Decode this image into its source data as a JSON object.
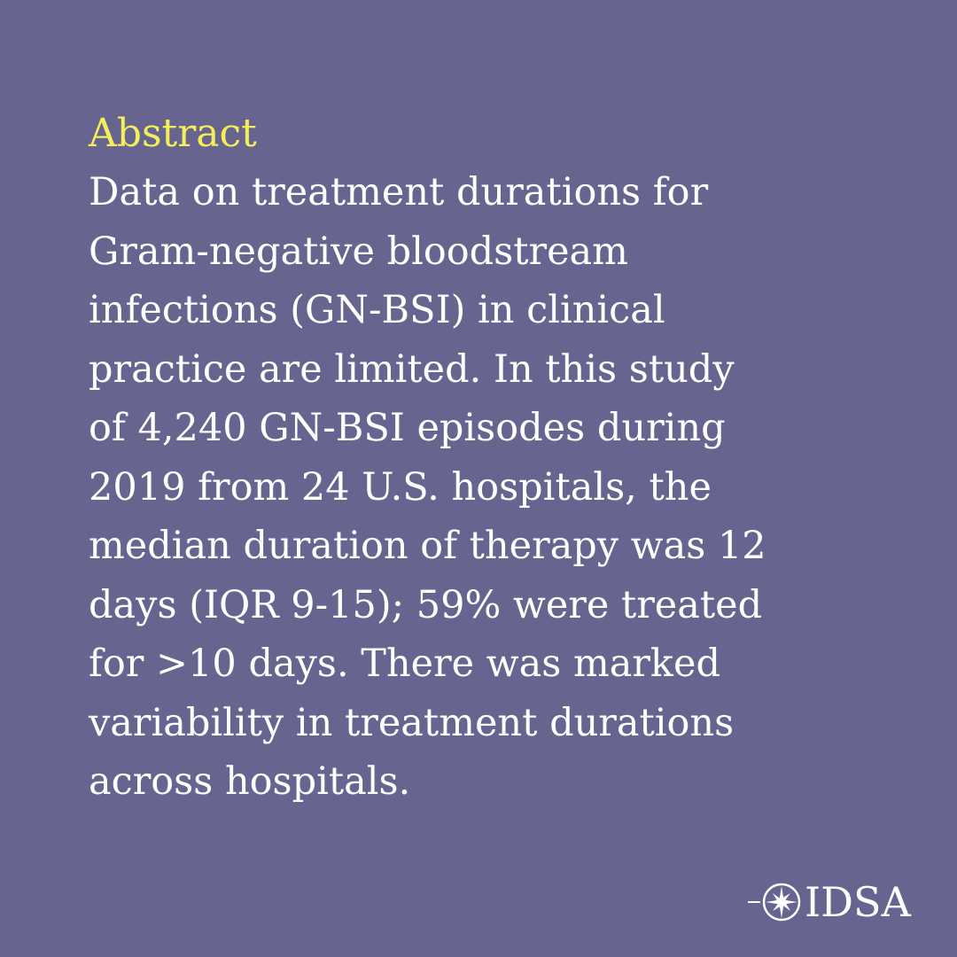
{
  "background_color": "#67648f",
  "heading_color": "#f4ee5a",
  "text_color": "#ffffff",
  "heading": "Abstract",
  "body_lines": [
    "Data on treatment durations for",
    "Gram-negative bloodstream",
    "infections (GN-BSI) in clinical",
    "practice are limited. In this study",
    "of 4,240 GN-BSI episodes during",
    "2019 from 24 U.S. hospitals, the",
    "median duration of therapy was 12",
    "days (IQR 9-15); 59% were treated",
    "for >10 days. There was marked",
    "variability in treatment durations",
    "across hospitals."
  ],
  "logo": {
    "text": "IDSA",
    "icon": "compass-star-icon"
  }
}
